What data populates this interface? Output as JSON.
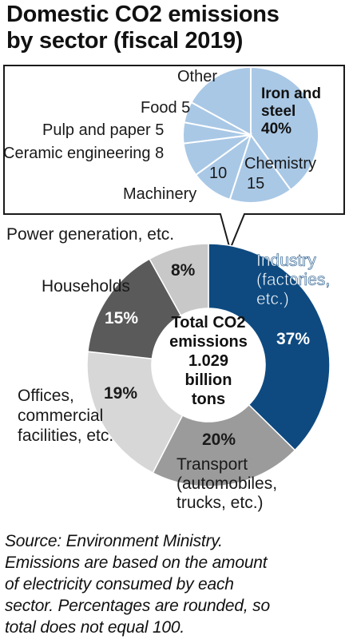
{
  "title": [
    "Domestic CO2 emissions",
    "by sector (fiscal 2019)"
  ],
  "note": [
    "Source: Environment Ministry.",
    "Emissions are based on the amount",
    "of electricity consumed by each",
    "sector. Percentages are rounded, so",
    "total does not equal 100."
  ],
  "colors": {
    "industry": "#0e4a80",
    "transport": "#9b9b9b",
    "offices": "#d7d7d7",
    "households": "#5a5a5a",
    "power": "#c8c8c8",
    "inset": "#a9c8e6",
    "inset_stroke": "#ffffff"
  },
  "chart_data": [
    {
      "type": "pie",
      "variant": "donut",
      "center_label": [
        "Total CO2",
        "emissions",
        "1.029",
        "billion",
        "tons"
      ],
      "slices": [
        {
          "key": "industry",
          "label": [
            "Industry",
            "(factories,",
            "etc.)"
          ],
          "value": 37,
          "value_label": "37%"
        },
        {
          "key": "transport",
          "label": [
            "Transport",
            "(automobiles,",
            "trucks, etc.)"
          ],
          "value": 20,
          "value_label": "20%"
        },
        {
          "key": "offices",
          "label": [
            "Offices,",
            "commercial",
            "facilities, etc."
          ],
          "value": 19,
          "value_label": "19%"
        },
        {
          "key": "households",
          "label": [
            "Households"
          ],
          "value": 15,
          "value_label": "15%"
        },
        {
          "key": "power",
          "label": [
            "Power generation, etc."
          ],
          "value": 8,
          "value_label": "8%"
        }
      ]
    },
    {
      "type": "pie",
      "parent": "industry",
      "slices": [
        {
          "key": "iron",
          "label": [
            "Iron and",
            "steel"
          ],
          "value": 40,
          "value_label": "40%"
        },
        {
          "key": "chemistry",
          "label": [
            "Chemistry"
          ],
          "value": 15,
          "value_label": "15"
        },
        {
          "key": "machinery",
          "label": [
            "Machinery"
          ],
          "value": 10,
          "value_label": "10"
        },
        {
          "key": "ceramic",
          "label": [
            "Ceramic engineering"
          ],
          "value": 8,
          "value_label": "8"
        },
        {
          "key": "pulp",
          "label": [
            "Pulp and paper"
          ],
          "value": 5,
          "value_label": "5"
        },
        {
          "key": "food",
          "label": [
            "Food"
          ],
          "value": 5,
          "value_label": "5"
        },
        {
          "key": "other",
          "label": [
            "Other"
          ],
          "value": 17,
          "value_label": ""
        }
      ]
    }
  ]
}
